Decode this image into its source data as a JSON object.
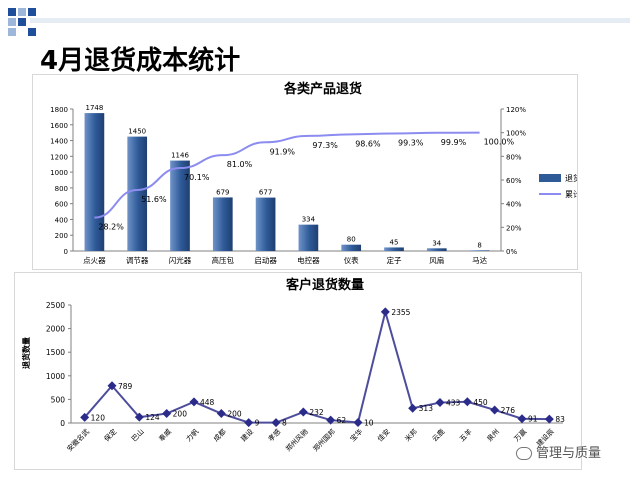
{
  "slide": {
    "title": "4月退货成本统计",
    "watermark": "管理与质量"
  },
  "colors": {
    "bar": "#2e5a98",
    "bar_light": "#6f93c8",
    "line": "#8c8cf0",
    "line2": "#4d4d9c",
    "marker": "#2b2b8a",
    "deco_dark": "#1f4e9a",
    "deco_light": "#9db7db"
  },
  "chart_data": [
    {
      "type": "bar",
      "title": "各类产品退货",
      "categories": [
        "点火器",
        "调节器",
        "闪光器",
        "高压包",
        "启动器",
        "电控器",
        "仪表",
        "定子",
        "风扇",
        "马达"
      ],
      "series": [
        {
          "name": "退货数量",
          "type": "bar",
          "axis": "left",
          "values": [
            1748,
            1450,
            1146,
            679,
            677,
            334,
            80,
            45,
            34,
            8
          ]
        },
        {
          "name": "累计不良比例",
          "type": "line",
          "axis": "right",
          "values": [
            28.2,
            51.6,
            70.1,
            81.0,
            91.9,
            97.3,
            98.6,
            99.3,
            99.9,
            100.0
          ],
          "labels": [
            "28.2%",
            "51.6%",
            "70.1%",
            "81.0%",
            "91.9%",
            "97.3%",
            "98.6%",
            "99.3%",
            "99.9%",
            "100.0%"
          ]
        }
      ],
      "ylim": [
        0,
        1800
      ],
      "yticks": [
        "0",
        "200",
        "400",
        "600",
        "800",
        "1000",
        "1200",
        "1400",
        "1600",
        "1800"
      ],
      "y2lim": [
        0,
        120
      ],
      "y2ticks": [
        "0%",
        "20%",
        "40%",
        "60%",
        "80%",
        "100%",
        "120%"
      ],
      "legend": "right",
      "grid": false
    },
    {
      "type": "line",
      "title": "客户退货数量",
      "ylabel": "退货数量",
      "categories": [
        "安徽名武",
        "保定",
        "巴山",
        "奉威",
        "力帆",
        "成都",
        "建设",
        "孝感",
        "郑州风驰",
        "郑州国邦",
        "宝华",
        "佳安",
        "米邦",
        "云鹿",
        "五羊",
        "泉州",
        "万赢",
        "建设辰"
      ],
      "series": [
        {
          "name": "退货数量",
          "values": [
            120,
            789,
            124,
            200,
            448,
            200,
            9,
            8,
            232,
            62,
            10,
            2355,
            313,
            433,
            450,
            276,
            91,
            83
          ]
        }
      ],
      "ylim": [
        0,
        2500
      ],
      "yticks": [
        "0",
        "500",
        "1000",
        "1500",
        "2000",
        "2500"
      ],
      "grid": false
    }
  ]
}
